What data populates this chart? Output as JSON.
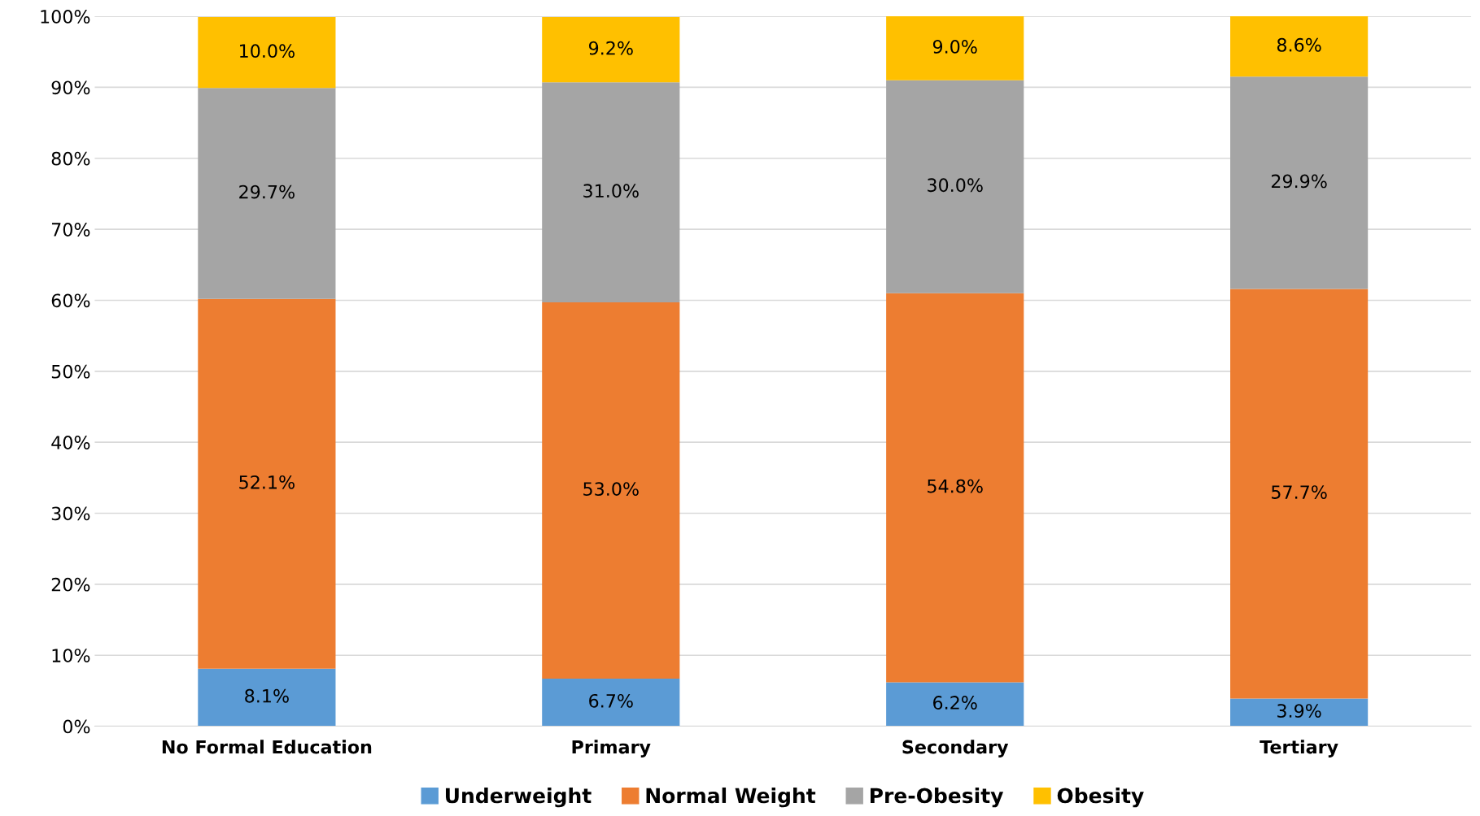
{
  "chart_data": {
    "type": "bar",
    "stacked": true,
    "categories": [
      "No Formal Education",
      "Primary",
      "Secondary",
      "Tertiary"
    ],
    "series": [
      {
        "name": "Underweight",
        "color": "#5b9bd5",
        "values": [
          8.1,
          6.7,
          6.2,
          3.9
        ],
        "value_labels": [
          "8.1%",
          "6.7%",
          "6.2%",
          "3.9%"
        ]
      },
      {
        "name": "Normal Weight",
        "color": "#ed7d31",
        "values": [
          52.1,
          53.0,
          54.8,
          57.7
        ],
        "value_labels": [
          "52.1%",
          "53.0%",
          "54.8%",
          "57.7%"
        ]
      },
      {
        "name": "Pre-Obesity",
        "color": "#a5a5a5",
        "values": [
          29.7,
          31.0,
          30.0,
          29.9
        ],
        "value_labels": [
          "29.7%",
          "31.0%",
          "30.0%",
          "29.9%"
        ]
      },
      {
        "name": "Obesity",
        "color": "#ffc000",
        "values": [
          10.0,
          9.2,
          9.0,
          8.6
        ],
        "value_labels": [
          "10.0%",
          "9.2%",
          "9.0%",
          "8.6%"
        ]
      }
    ],
    "ylim": [
      0,
      100
    ],
    "yticks": [
      {
        "value": 0,
        "label": "0%"
      },
      {
        "value": 10,
        "label": "10%"
      },
      {
        "value": 20,
        "label": "20%"
      },
      {
        "value": 30,
        "label": "30%"
      },
      {
        "value": 40,
        "label": "40%"
      },
      {
        "value": 50,
        "label": "50%"
      },
      {
        "value": 60,
        "label": "60%"
      },
      {
        "value": 70,
        "label": "70%"
      },
      {
        "value": 80,
        "label": "80%"
      },
      {
        "value": 90,
        "label": "90%"
      },
      {
        "value": 100,
        "label": "100%"
      }
    ],
    "grid": "y",
    "legend": "bottom"
  }
}
